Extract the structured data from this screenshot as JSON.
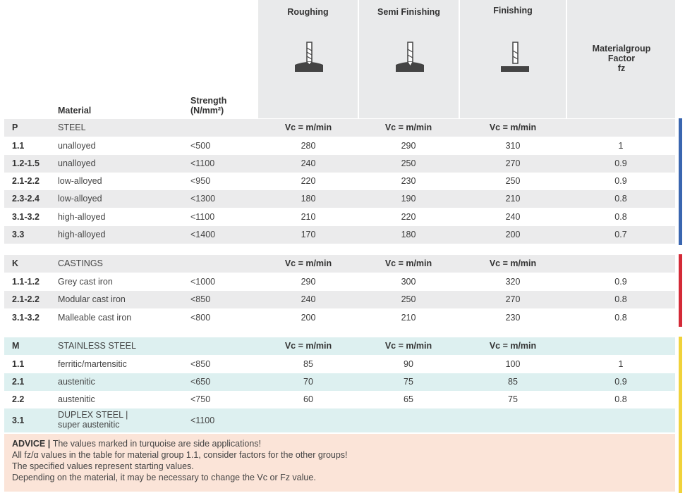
{
  "header": {
    "material": "Material",
    "strength_line1": "Strength",
    "strength_line2": "(N/mm²)",
    "roughing": "Roughing",
    "semi_finishing": "Semi Finishing",
    "finishing": "Finishing",
    "mg_line1": "Materialgroup",
    "mg_line2": "Factor",
    "mg_line3": "fz",
    "vc_label": "Vc = m/min"
  },
  "groups": {
    "P": {
      "code": "P",
      "name": "STEEL",
      "rows": [
        {
          "code": "1.1",
          "material": "unalloyed",
          "strength": "<500",
          "roughing": "280",
          "semi": "290",
          "finishing": "310",
          "fz": "1"
        },
        {
          "code": "1.2-1.5",
          "material": "unalloyed",
          "strength": "<1100",
          "roughing": "240",
          "semi": "250",
          "finishing": "270",
          "fz": "0.9"
        },
        {
          "code": "2.1-2.2",
          "material": "low-alloyed",
          "strength": "<950",
          "roughing": "220",
          "semi": "230",
          "finishing": "250",
          "fz": "0.9"
        },
        {
          "code": "2.3-2.4",
          "material": "low-alloyed",
          "strength": "<1300",
          "roughing": "180",
          "semi": "190",
          "finishing": "210",
          "fz": "0.8"
        },
        {
          "code": "3.1-3.2",
          "material": "high-alloyed",
          "strength": "<1100",
          "roughing": "210",
          "semi": "220",
          "finishing": "240",
          "fz": "0.8"
        },
        {
          "code": "3.3",
          "material": "high-alloyed",
          "strength": "<1400",
          "roughing": "170",
          "semi": "180",
          "finishing": "200",
          "fz": "0.7"
        }
      ]
    },
    "K": {
      "code": "K",
      "name": "CASTINGS",
      "rows": [
        {
          "code": "1.1-1.2",
          "material": "Grey cast iron",
          "strength": "<1000",
          "roughing": "290",
          "semi": "300",
          "finishing": "320",
          "fz": "0.9"
        },
        {
          "code": "2.1-2.2",
          "material": "Modular cast iron",
          "strength": "<850",
          "roughing": "240",
          "semi": "250",
          "finishing": "270",
          "fz": "0.8"
        },
        {
          "code": "3.1-3.2",
          "material": "Malleable cast iron",
          "strength": "<800",
          "roughing": "200",
          "semi": "210",
          "finishing": "230",
          "fz": "0.8"
        }
      ]
    },
    "M": {
      "code": "M",
      "name": "STAINLESS STEEL",
      "rows": [
        {
          "code": "1.1",
          "material": "ferritic/martensitic",
          "strength": "<850",
          "roughing": "85",
          "semi": "90",
          "finishing": "100",
          "fz": "1"
        },
        {
          "code": "2.1",
          "material": "austenitic",
          "strength": "<650",
          "roughing": "70",
          "semi": "75",
          "finishing": "85",
          "fz": "0.9"
        },
        {
          "code": "2.2",
          "material": "austenitic",
          "strength": "<750",
          "roughing": "60",
          "semi": "65",
          "finishing": "75",
          "fz": "0.8"
        },
        {
          "code": "3.1",
          "material_line1": "DUPLEX STEEL |",
          "material_line2": "super austenitic",
          "strength": "<1100",
          "roughing": "",
          "semi": "",
          "finishing": "",
          "fz": ""
        }
      ]
    }
  },
  "advice": {
    "title": "ADVICE",
    "line1": "The values marked in turquoise are side applications!",
    "line2": "All fz/α values in the table for material group 1.1, consider factors for the other groups!",
    "line3": "The specified values represent starting values.",
    "line4": "Depending on the material, it may be necessary to change the Vc or Fz value."
  },
  "colors": {
    "steel_bar": "#3a66b0",
    "castings_bar": "#d42a37",
    "stainless_bar": "#f0d23a",
    "turquoise_row": "#ddf0f0",
    "grey_row": "#ebebec",
    "advice_bg": "#fbe4d8"
  },
  "icons": {
    "roughing": "roughing-endmill-icon",
    "semi": "semi-finishing-endmill-icon",
    "finishing": "finishing-endmill-icon"
  }
}
